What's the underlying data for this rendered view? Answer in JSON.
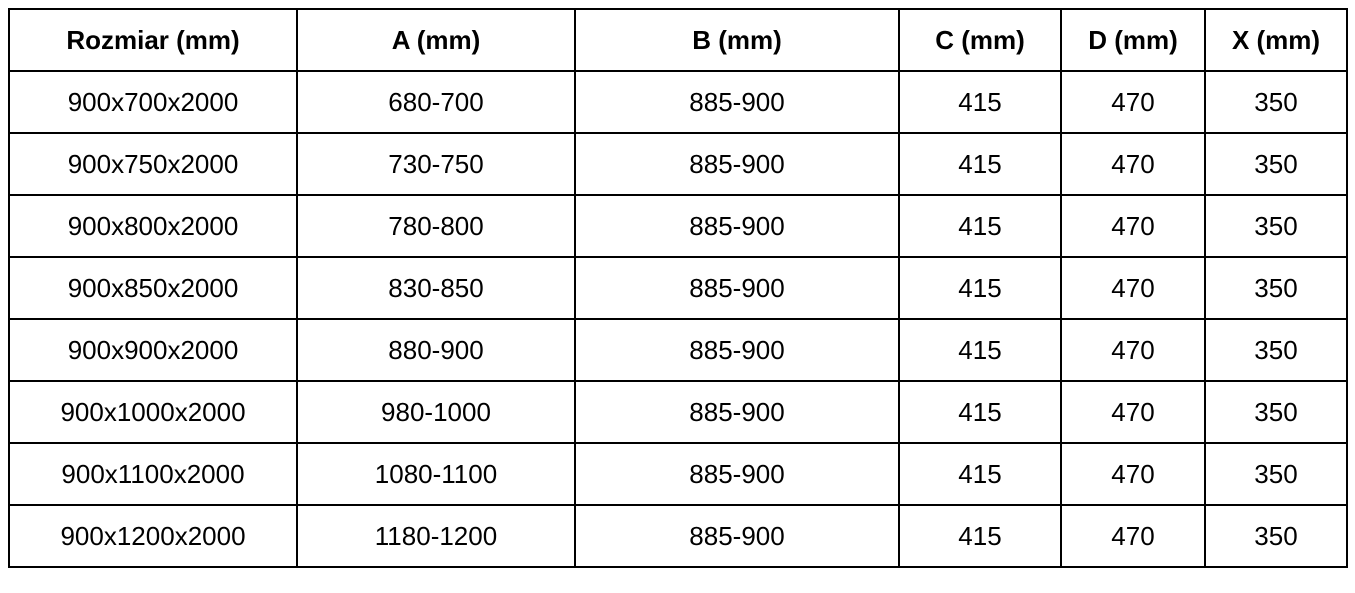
{
  "headers": [
    "Rozmiar (mm)",
    "A (mm)",
    "B (mm)",
    "C (mm)",
    "D (mm)",
    "X (mm)"
  ],
  "rows": [
    [
      "900x700x2000",
      "680-700",
      "885-900",
      "415",
      "470",
      "350"
    ],
    [
      "900x750x2000",
      "730-750",
      "885-900",
      "415",
      "470",
      "350"
    ],
    [
      "900x800x2000",
      "780-800",
      "885-900",
      "415",
      "470",
      "350"
    ],
    [
      "900x850x2000",
      "830-850",
      "885-900",
      "415",
      "470",
      "350"
    ],
    [
      "900x900x2000",
      "880-900",
      "885-900",
      "415",
      "470",
      "350"
    ],
    [
      "900x1000x2000",
      "980-1000",
      "885-900",
      "415",
      "470",
      "350"
    ],
    [
      "900x1100x2000",
      "1080-1100",
      "885-900",
      "415",
      "470",
      "350"
    ],
    [
      "900x1200x2000",
      "1180-1200",
      "885-900",
      "415",
      "470",
      "350"
    ]
  ]
}
